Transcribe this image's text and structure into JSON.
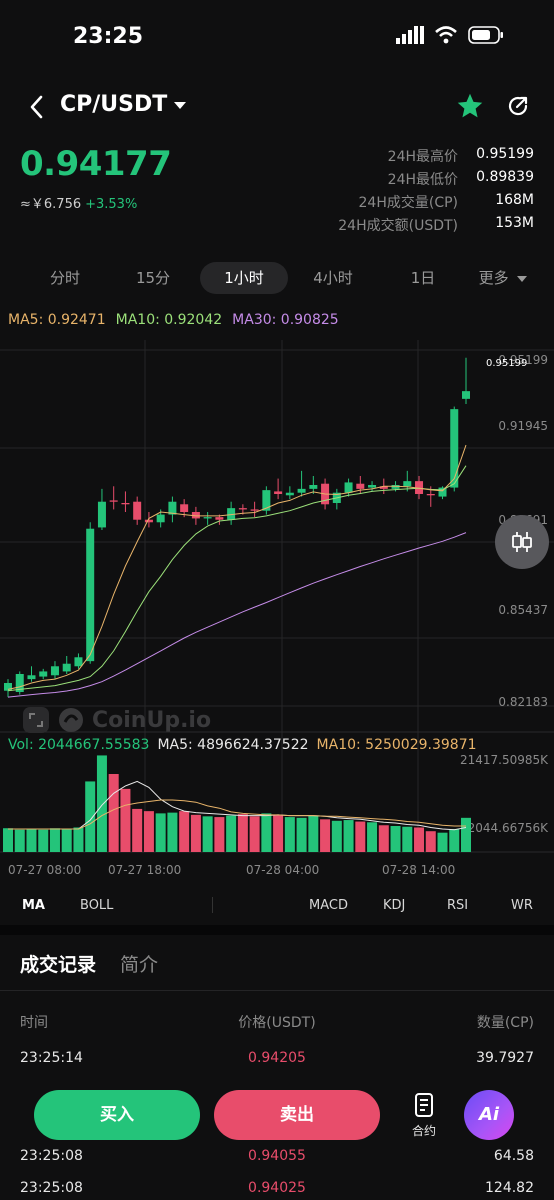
{
  "status": {
    "time": "23:25"
  },
  "header": {
    "pair": "CP/USDT"
  },
  "price": {
    "last": "0.94177",
    "cny": "≈￥6.756",
    "change": "+3.53%"
  },
  "stats": [
    {
      "label": "24H最高价",
      "value": "0.95199"
    },
    {
      "label": "24H最低价",
      "value": "0.89839"
    },
    {
      "label": "24H成交量(CP)",
      "value": "168M"
    },
    {
      "label": "24H成交额(USDT)",
      "value": "153M"
    }
  ],
  "intervals": [
    "分时",
    "15分",
    "1小时",
    "4小时",
    "1日",
    "更多"
  ],
  "active_interval": "1小时",
  "ma_legend": {
    "ma5": "MA5: 0.92471",
    "ma10": "MA10: 0.92042",
    "ma30": "MA30: 0.90825"
  },
  "vol_legend": {
    "vol": "Vol: 2044667.55583",
    "ma5": "MA5: 4896624.37522",
    "ma10": "MA10: 5250029.39871"
  },
  "watermark": "CoinUp.io",
  "colors": {
    "up": "#24c47a",
    "down": "#e84d6b",
    "ma5": "#e8b46a",
    "ma10": "#9be07a",
    "ma30": "#c58ce8"
  },
  "chart_data": {
    "type": "candlestick",
    "price_axis_labels": [
      "0.95199",
      "0.91945",
      "0.88691",
      "0.85437",
      "0.82183"
    ],
    "price_tag": "0.95199",
    "volume_axis_labels": [
      "21417.50985K",
      "2044.66756K"
    ],
    "time_labels": [
      "07-27 08:00",
      "07-27 18:00",
      "07-28 04:00",
      "07-28 14:00"
    ],
    "ylim": [
      0.815,
      0.955
    ],
    "candles": [
      {
        "o": 0.8225,
        "c": 0.8255,
        "h": 0.827,
        "l": 0.82
      },
      {
        "o": 0.822,
        "c": 0.829,
        "h": 0.83,
        "l": 0.821
      },
      {
        "o": 0.827,
        "c": 0.8285,
        "h": 0.832,
        "l": 0.826
      },
      {
        "o": 0.828,
        "c": 0.83,
        "h": 0.831,
        "l": 0.827
      },
      {
        "o": 0.8285,
        "c": 0.832,
        "h": 0.834,
        "l": 0.827
      },
      {
        "o": 0.83,
        "c": 0.833,
        "h": 0.836,
        "l": 0.829
      },
      {
        "o": 0.832,
        "c": 0.8355,
        "h": 0.837,
        "l": 0.831
      },
      {
        "o": 0.834,
        "c": 0.8855,
        "h": 0.888,
        "l": 0.833
      },
      {
        "o": 0.886,
        "c": 0.896,
        "h": 0.901,
        "l": 0.885
      },
      {
        "o": 0.8965,
        "c": 0.896,
        "h": 0.902,
        "l": 0.893
      },
      {
        "o": 0.8955,
        "c": 0.895,
        "h": 0.9,
        "l": 0.892
      },
      {
        "o": 0.896,
        "c": 0.889,
        "h": 0.898,
        "l": 0.887
      },
      {
        "o": 0.889,
        "c": 0.888,
        "h": 0.892,
        "l": 0.886
      },
      {
        "o": 0.888,
        "c": 0.891,
        "h": 0.893,
        "l": 0.886
      },
      {
        "o": 0.891,
        "c": 0.896,
        "h": 0.898,
        "l": 0.888
      },
      {
        "o": 0.895,
        "c": 0.892,
        "h": 0.897,
        "l": 0.89
      },
      {
        "o": 0.892,
        "c": 0.8895,
        "h": 0.894,
        "l": 0.887
      },
      {
        "o": 0.8895,
        "c": 0.89,
        "h": 0.892,
        "l": 0.887
      },
      {
        "o": 0.89,
        "c": 0.889,
        "h": 0.891,
        "l": 0.887
      },
      {
        "o": 0.889,
        "c": 0.8935,
        "h": 0.896,
        "l": 0.887
      },
      {
        "o": 0.8935,
        "c": 0.893,
        "h": 0.895,
        "l": 0.891
      },
      {
        "o": 0.893,
        "c": 0.8925,
        "h": 0.896,
        "l": 0.89
      },
      {
        "o": 0.8925,
        "c": 0.9005,
        "h": 0.902,
        "l": 0.891
      },
      {
        "o": 0.9,
        "c": 0.899,
        "h": 0.905,
        "l": 0.897
      },
      {
        "o": 0.8985,
        "c": 0.8995,
        "h": 0.902,
        "l": 0.897
      },
      {
        "o": 0.8995,
        "c": 0.901,
        "h": 0.908,
        "l": 0.898
      },
      {
        "o": 0.901,
        "c": 0.9025,
        "h": 0.906,
        "l": 0.899
      },
      {
        "o": 0.903,
        "c": 0.895,
        "h": 0.905,
        "l": 0.893
      },
      {
        "o": 0.8955,
        "c": 0.8995,
        "h": 0.901,
        "l": 0.893
      },
      {
        "o": 0.8995,
        "c": 0.9035,
        "h": 0.905,
        "l": 0.898
      },
      {
        "o": 0.903,
        "c": 0.901,
        "h": 0.906,
        "l": 0.899
      },
      {
        "o": 0.9015,
        "c": 0.9025,
        "h": 0.904,
        "l": 0.9
      },
      {
        "o": 0.902,
        "c": 0.901,
        "h": 0.905,
        "l": 0.899
      },
      {
        "o": 0.901,
        "c": 0.9025,
        "h": 0.904,
        "l": 0.9
      },
      {
        "o": 0.902,
        "c": 0.904,
        "h": 0.908,
        "l": 0.9
      },
      {
        "o": 0.904,
        "c": 0.899,
        "h": 0.906,
        "l": 0.897
      },
      {
        "o": 0.899,
        "c": 0.8985,
        "h": 0.902,
        "l": 0.894
      },
      {
        "o": 0.898,
        "c": 0.9015,
        "h": 0.902,
        "l": 0.897
      },
      {
        "o": 0.9015,
        "c": 0.932,
        "h": 0.933,
        "l": 0.9
      },
      {
        "o": 0.936,
        "c": 0.939,
        "h": 0.952,
        "l": 0.934
      }
    ],
    "ma5": [
      0.823,
      0.824,
      0.8255,
      0.8265,
      0.827,
      0.8285,
      0.8305,
      0.8365,
      0.8475,
      0.86,
      0.871,
      0.8805,
      0.8895,
      0.892,
      0.8915,
      0.891,
      0.8905,
      0.8905,
      0.8905,
      0.891,
      0.8915,
      0.8918,
      0.8935,
      0.8955,
      0.8965,
      0.8985,
      0.8998,
      0.899,
      0.8988,
      0.8995,
      0.9005,
      0.901,
      0.902,
      0.902,
      0.9018,
      0.9012,
      0.9006,
      0.9002,
      0.905,
      0.918
    ],
    "ma10": [
      0.8225,
      0.823,
      0.8235,
      0.824,
      0.8245,
      0.8255,
      0.8265,
      0.828,
      0.832,
      0.838,
      0.8455,
      0.8535,
      0.861,
      0.867,
      0.8735,
      0.879,
      0.8835,
      0.8865,
      0.8885,
      0.889,
      0.8895,
      0.8898,
      0.8905,
      0.8915,
      0.8925,
      0.894,
      0.8955,
      0.8965,
      0.8975,
      0.8985,
      0.8992,
      0.9,
      0.9004,
      0.9007,
      0.901,
      0.9012,
      0.9008,
      0.9006,
      0.903,
      0.91
    ],
    "ma30": [
      0.82,
      0.8205,
      0.821,
      0.8214,
      0.8218,
      0.8224,
      0.8232,
      0.8245,
      0.826,
      0.8282,
      0.8305,
      0.833,
      0.8355,
      0.838,
      0.8405,
      0.843,
      0.8452,
      0.8472,
      0.8492,
      0.8512,
      0.8532,
      0.855,
      0.8568,
      0.8587,
      0.8606,
      0.8625,
      0.8643,
      0.866,
      0.8676,
      0.8692,
      0.8708,
      0.8723,
      0.8738,
      0.8752,
      0.8766,
      0.878,
      0.8793,
      0.8806,
      0.8822,
      0.884
    ],
    "volumes": [
      3.2,
      3.0,
      3.1,
      3.0,
      3.2,
      3.1,
      3.3,
      9.5,
      13.0,
      10.5,
      8.5,
      5.8,
      5.5,
      5.2,
      5.3,
      5.5,
      5.0,
      4.8,
      4.7,
      4.9,
      5.1,
      4.8,
      5.2,
      5.0,
      4.7,
      4.6,
      4.9,
      4.4,
      4.2,
      4.3,
      4.1,
      4.0,
      3.6,
      3.5,
      3.4,
      3.3,
      2.8,
      2.6,
      3.1,
      4.6
    ],
    "vol_ma5": [
      3.1,
      3.1,
      3.1,
      3.1,
      3.1,
      3.1,
      3.1,
      4.3,
      6.3,
      7.9,
      8.9,
      9.5,
      8.7,
      7.1,
      6.1,
      5.5,
      5.3,
      5.2,
      5.1,
      5.0,
      4.9,
      4.9,
      4.9,
      5.0,
      4.9,
      4.9,
      4.9,
      4.8,
      4.6,
      4.5,
      4.4,
      4.2,
      4.0,
      3.9,
      3.7,
      3.6,
      3.3,
      3.1,
      3.0,
      3.3
    ],
    "vol_ma10": [
      3.1,
      3.1,
      3.1,
      3.1,
      3.1,
      3.1,
      3.1,
      3.8,
      4.9,
      5.7,
      6.3,
      6.6,
      6.8,
      7.0,
      7.0,
      6.9,
      6.7,
      6.2,
      5.9,
      5.4,
      5.2,
      5.1,
      5.0,
      5.0,
      4.9,
      4.9,
      4.9,
      4.8,
      4.8,
      4.7,
      4.6,
      4.5,
      4.4,
      4.3,
      4.1,
      4.0,
      3.8,
      3.6,
      3.5,
      3.5
    ]
  },
  "indicators": {
    "main": [
      "MA",
      "BOLL"
    ],
    "sub": [
      "MACD",
      "KDJ",
      "RSI",
      "WR"
    ]
  },
  "trades": {
    "tabs": [
      "成交记录",
      "简介"
    ],
    "headers": {
      "time": "时间",
      "price": "价格(USDT)",
      "qty": "数量(CP)"
    },
    "rows": [
      {
        "time": "23:25:14",
        "price": "0.94205",
        "qty": "39.7927"
      },
      {
        "time": "23:25:08",
        "price": "0.94055",
        "qty": "64.58"
      },
      {
        "time": "23:25:08",
        "price": "0.94025",
        "qty": "124.82"
      }
    ]
  },
  "actions": {
    "buy": "买入",
    "sell": "卖出",
    "contract": "合约",
    "ai": "Ai"
  }
}
